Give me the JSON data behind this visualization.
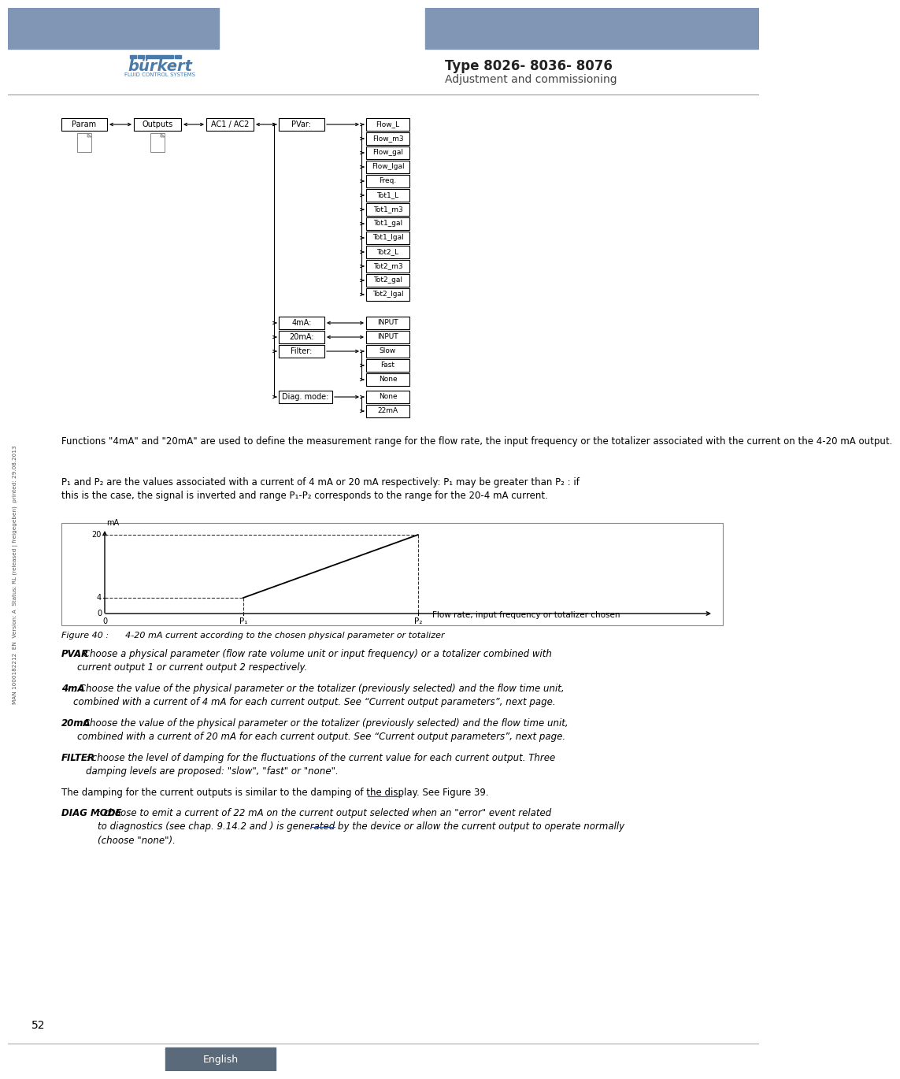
{
  "page_bg": "#ffffff",
  "header_bar_color": "#8096b4",
  "type_text": "Type 8026- 8036- 8076",
  "subtitle_text": "Adjustment and commissioning",
  "page_number": "52",
  "footer_text": "English",
  "footer_bg": "#5a6a7a",
  "separator_color": "#aaaaaa",
  "flow_items": [
    "Flow_L",
    "Flow_m3",
    "Flow_gal",
    "Flow_lgal",
    "Freq.",
    "Tot1_L",
    "Tot1_m3",
    "Tot1_gal",
    "Tot1_lgal",
    "Tot2_L",
    "Tot2_m3",
    "Tot2_gal",
    "Tot2_lgal"
  ],
  "filter_items": [
    "Slow",
    "Fast",
    "None"
  ],
  "diag_items": [
    "None",
    "22mA"
  ],
  "side_text": "MAN 1000182212  EN  Version: A  Status: RL (released | freigegeben)  printed: 29.08.2013",
  "para0": "Functions \"4mA\" and \"20mA\" are used to define the measurement range for the flow rate, the input frequency or the totalizer associated with the current on the 4-20 mA output.",
  "para1_a": "P",
  "para1_b": "1",
  "para1_c": " and P",
  "para1_d": "2",
  "para1_e": " are the values associated with a current of 4 mA or 20 mA respectively: P",
  "para1_f": "1",
  "para1_g": " may be greater than P",
  "para1_h": "2",
  "para1_i": " : if this is the case, the signal is inverted and range P",
  "para1_j": "1",
  "para1_k": "-P",
  "para1_l": "2",
  "para1_m": " corresponds to the range for the 20-4 mA current.",
  "fig_caption": "Figure 40 :      4-20 mA current according to the chosen physical parameter or totalizer",
  "pvar_bold": "PVAR",
  "pvar_rest": ": Choose a physical parameter (flow rate volume unit or input frequency) or a totalizer combined with\ncurrent output 1 or current output 2 respectively.",
  "ma4_bold": "4mA",
  "ma4_rest": ": Choose the value of the physical parameter or the totalizer (previously selected) and the flow time unit,\ncombined with a current of 4 mA for each current output. See “Current output parameters”, next page.",
  "ma20_bold": "20mA",
  "ma20_rest": ": Choose the value of the physical parameter or the totalizer (previously selected) and the flow time unit,\ncombined with a current of 20 mA for each current output. See “Current output parameters”, next page.",
  "filter_bold": "FILTER",
  "filter_rest": ": choose the level of damping for the fluctuations of the current value for each current output. Three\ndamping levels are proposed: \"slow\", \"fast\" or \"none\".",
  "damping_text": "The damping for the current outputs is similar to the damping of the display. See Figure 39.",
  "damping_underline": "Figure 39",
  "diag_bold": "DIAG MODE",
  "diag_rest": ": choose to emit a current of 22 mA on the current output selected when an \"error\" event related\nto diagnostics (see chap. 9.14.2 and ) is generated by the device or allow the current output to operate normally\n(choose \"none\").",
  "diag_underline": "9.14.2"
}
